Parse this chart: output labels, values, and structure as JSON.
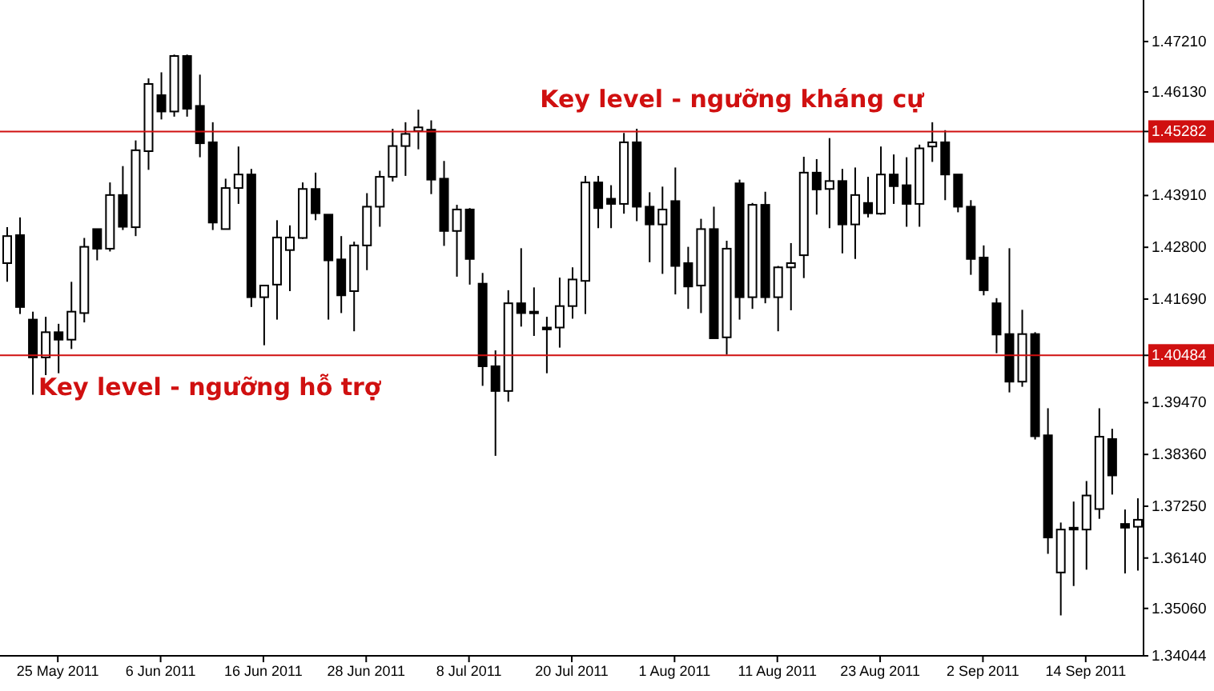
{
  "chart_data": {
    "type": "candlestick",
    "categories": [
      null,
      null,
      null,
      null,
      "25 May 2011",
      null,
      null,
      null,
      null,
      null,
      null,
      null,
      "6 Jun 2011",
      null,
      null,
      null,
      null,
      null,
      null,
      null,
      "16 Jun 2011",
      null,
      null,
      null,
      null,
      null,
      null,
      null,
      "28 Jun 2011",
      null,
      null,
      null,
      null,
      null,
      null,
      null,
      "8 Jul 2011",
      null,
      null,
      null,
      null,
      null,
      null,
      null,
      "20 Jul 2011",
      null,
      null,
      null,
      null,
      null,
      null,
      null,
      "1 Aug 2011",
      null,
      null,
      null,
      null,
      null,
      null,
      null,
      "11 Aug 2011",
      null,
      null,
      null,
      null,
      null,
      null,
      null,
      "23 Aug 2011",
      null,
      null,
      null,
      null,
      null,
      null,
      null,
      "2 Sep 2011",
      null,
      null,
      null,
      null,
      null,
      null,
      null,
      "14 Sep 2011",
      null,
      null,
      null,
      null
    ],
    "series": [
      {
        "color": "#000000",
        "ohlc": [
          [
            1.4246,
            1.4323,
            1.4206,
            1.4304
          ],
          [
            1.4306,
            1.4344,
            1.4137,
            1.4152
          ],
          [
            1.4125,
            1.4142,
            1.3964,
            1.4044
          ],
          [
            1.4044,
            1.4131,
            1.4006,
            1.4098
          ],
          [
            1.4098,
            1.4116,
            1.401,
            1.4082
          ],
          [
            1.4082,
            1.4206,
            1.4062,
            1.4142
          ],
          [
            1.4139,
            1.43,
            1.4119,
            1.4281
          ],
          [
            1.4319,
            1.4319,
            1.4252,
            1.4277
          ],
          [
            1.4277,
            1.4419,
            1.4271,
            1.4392
          ],
          [
            1.4392,
            1.4454,
            1.4317,
            1.4324
          ],
          [
            1.4323,
            1.4509,
            1.4304,
            1.4488
          ],
          [
            1.4486,
            1.4642,
            1.4446,
            1.463
          ],
          [
            1.4606,
            1.4655,
            1.4554,
            1.4571
          ],
          [
            1.4571,
            1.4693,
            1.456,
            1.469
          ],
          [
            1.469,
            1.4693,
            1.456,
            1.4577
          ],
          [
            1.4583,
            1.465,
            1.4473,
            1.4503
          ],
          [
            1.4505,
            1.4548,
            1.4317,
            1.4333
          ],
          [
            1.4319,
            1.4427,
            1.4319,
            1.4407
          ],
          [
            1.4407,
            1.4496,
            1.4373,
            1.4436
          ],
          [
            1.4436,
            1.4448,
            1.4152,
            1.4173
          ],
          [
            1.4173,
            1.4198,
            1.407,
            1.4198
          ],
          [
            1.42,
            1.4338,
            1.4125,
            1.4301
          ],
          [
            1.4274,
            1.4327,
            1.4186,
            1.4301
          ],
          [
            1.43,
            1.4419,
            1.4298,
            1.4405
          ],
          [
            1.4405,
            1.444,
            1.4338,
            1.4353
          ],
          [
            1.435,
            1.435,
            1.4125,
            1.4252
          ],
          [
            1.4254,
            1.4304,
            1.4139,
            1.4177
          ],
          [
            1.4186,
            1.4292,
            1.41,
            1.4284
          ],
          [
            1.4284,
            1.4396,
            1.4231,
            1.4367
          ],
          [
            1.4367,
            1.4444,
            1.4324,
            1.4431
          ],
          [
            1.4431,
            1.4534,
            1.4421,
            1.4497
          ],
          [
            1.4497,
            1.4548,
            1.4433,
            1.4523
          ],
          [
            1.4529,
            1.4575,
            1.449,
            1.4537
          ],
          [
            1.4532,
            1.4552,
            1.4394,
            1.4425
          ],
          [
            1.4427,
            1.4465,
            1.4283,
            1.4315
          ],
          [
            1.4315,
            1.4371,
            1.4217,
            1.4361
          ],
          [
            1.4361,
            1.4364,
            1.42,
            1.4255
          ],
          [
            1.4202,
            1.4225,
            1.3983,
            1.4025
          ],
          [
            1.4025,
            1.4059,
            1.3833,
            1.3972
          ],
          [
            1.3972,
            1.4188,
            1.3949,
            1.416
          ],
          [
            1.416,
            1.4278,
            1.411,
            1.4139
          ],
          [
            1.4142,
            1.4194,
            1.409,
            1.4139
          ],
          [
            1.4108,
            1.4131,
            1.401,
            1.4104
          ],
          [
            1.4108,
            1.4215,
            1.4065,
            1.4154
          ],
          [
            1.4154,
            1.4237,
            1.4127,
            1.4211
          ],
          [
            1.4208,
            1.4433,
            1.4137,
            1.4419
          ],
          [
            1.4419,
            1.4433,
            1.4321,
            1.4364
          ],
          [
            1.4384,
            1.4413,
            1.4321,
            1.4373
          ],
          [
            1.4373,
            1.4525,
            1.4352,
            1.4505
          ],
          [
            1.4505,
            1.4534,
            1.4336,
            1.4367
          ],
          [
            1.4367,
            1.4398,
            1.4248,
            1.4329
          ],
          [
            1.4329,
            1.441,
            1.4223,
            1.4361
          ],
          [
            1.4379,
            1.4451,
            1.4179,
            1.424
          ],
          [
            1.4246,
            1.4281,
            1.4148,
            1.4196
          ],
          [
            1.4198,
            1.4341,
            1.4139,
            1.4319
          ],
          [
            1.4319,
            1.4367,
            1.4085,
            1.4085
          ],
          [
            1.4087,
            1.4294,
            1.405,
            1.4277
          ],
          [
            1.4417,
            1.4425,
            1.4125,
            1.4173
          ],
          [
            1.4173,
            1.4375,
            1.4148,
            1.4371
          ],
          [
            1.4371,
            1.4399,
            1.416,
            1.4173
          ],
          [
            1.4173,
            1.424,
            1.41,
            1.4237
          ],
          [
            1.4237,
            1.4289,
            1.4145,
            1.4246
          ],
          [
            1.4263,
            1.4474,
            1.4214,
            1.444
          ],
          [
            1.444,
            1.4469,
            1.435,
            1.4404
          ],
          [
            1.4405,
            1.4514,
            1.4321,
            1.4422
          ],
          [
            1.4422,
            1.4448,
            1.4267,
            1.4329
          ],
          [
            1.4329,
            1.4451,
            1.4255,
            1.4392
          ],
          [
            1.4375,
            1.4431,
            1.4344,
            1.4353
          ],
          [
            1.4352,
            1.4496,
            1.435,
            1.4436
          ],
          [
            1.4436,
            1.4479,
            1.4373,
            1.4411
          ],
          [
            1.4413,
            1.4473,
            1.4324,
            1.4373
          ],
          [
            1.4373,
            1.45,
            1.4324,
            1.4492
          ],
          [
            1.4496,
            1.4548,
            1.4463,
            1.4505
          ],
          [
            1.4505,
            1.4531,
            1.4381,
            1.4436
          ],
          [
            1.4436,
            1.4436,
            1.4355,
            1.4367
          ],
          [
            1.4367,
            1.4381,
            1.4221,
            1.4255
          ],
          [
            1.4258,
            1.4284,
            1.4177,
            1.4188
          ],
          [
            1.416,
            1.4171,
            1.4053,
            1.4093
          ],
          [
            1.4094,
            1.4278,
            1.3969,
            1.3992
          ],
          [
            1.3992,
            1.4146,
            1.3981,
            1.4094
          ],
          [
            1.4094,
            1.4098,
            1.3868,
            1.3875
          ],
          [
            1.3877,
            1.3935,
            1.3623,
            1.3658
          ],
          [
            1.3583,
            1.369,
            1.3491,
            1.3675
          ],
          [
            1.3679,
            1.3735,
            1.3554,
            1.3675
          ],
          [
            1.3675,
            1.3779,
            1.3589,
            1.3748
          ],
          [
            1.3719,
            1.3935,
            1.3698,
            1.3874
          ],
          [
            1.3869,
            1.3891,
            1.375,
            1.3791
          ],
          [
            1.3687,
            1.3718,
            1.3581,
            1.3679
          ],
          [
            1.3681,
            1.3742,
            1.3587,
            1.3696
          ]
        ]
      }
    ],
    "ylim": [
      1.34044,
      1.481
    ],
    "yticks": [
      {
        "value": 1.4721,
        "label": "1.47210"
      },
      {
        "value": 1.4613,
        "label": "1.46130"
      },
      {
        "value": 1.45282,
        "label": "1.45282"
      },
      {
        "value": 1.40484,
        "label": "1.40484"
      },
      {
        "value": 1.4391,
        "label": "1.43910"
      },
      {
        "value": 1.428,
        "label": "1.42800"
      },
      {
        "value": 1.4169,
        "label": "1.41690"
      },
      {
        "value": 1.3947,
        "label": "1.39470"
      },
      {
        "value": 1.3836,
        "label": "1.38360"
      },
      {
        "value": 1.3725,
        "label": "1.37250"
      },
      {
        "value": 1.3614,
        "label": "1.36140"
      },
      {
        "value": 1.3506,
        "label": "1.35060"
      },
      1.34044
    ],
    "ref_lines": [
      {
        "axis": "y",
        "value": 1.45282,
        "label": "Key level - ngưỡng kháng cự",
        "color": "#d01010"
      },
      {
        "axis": "y",
        "value": 1.40484,
        "label": "Key level - ngưỡng hỗ trợ",
        "color": "#d01010"
      }
    ],
    "grid": false,
    "legend": false
  }
}
